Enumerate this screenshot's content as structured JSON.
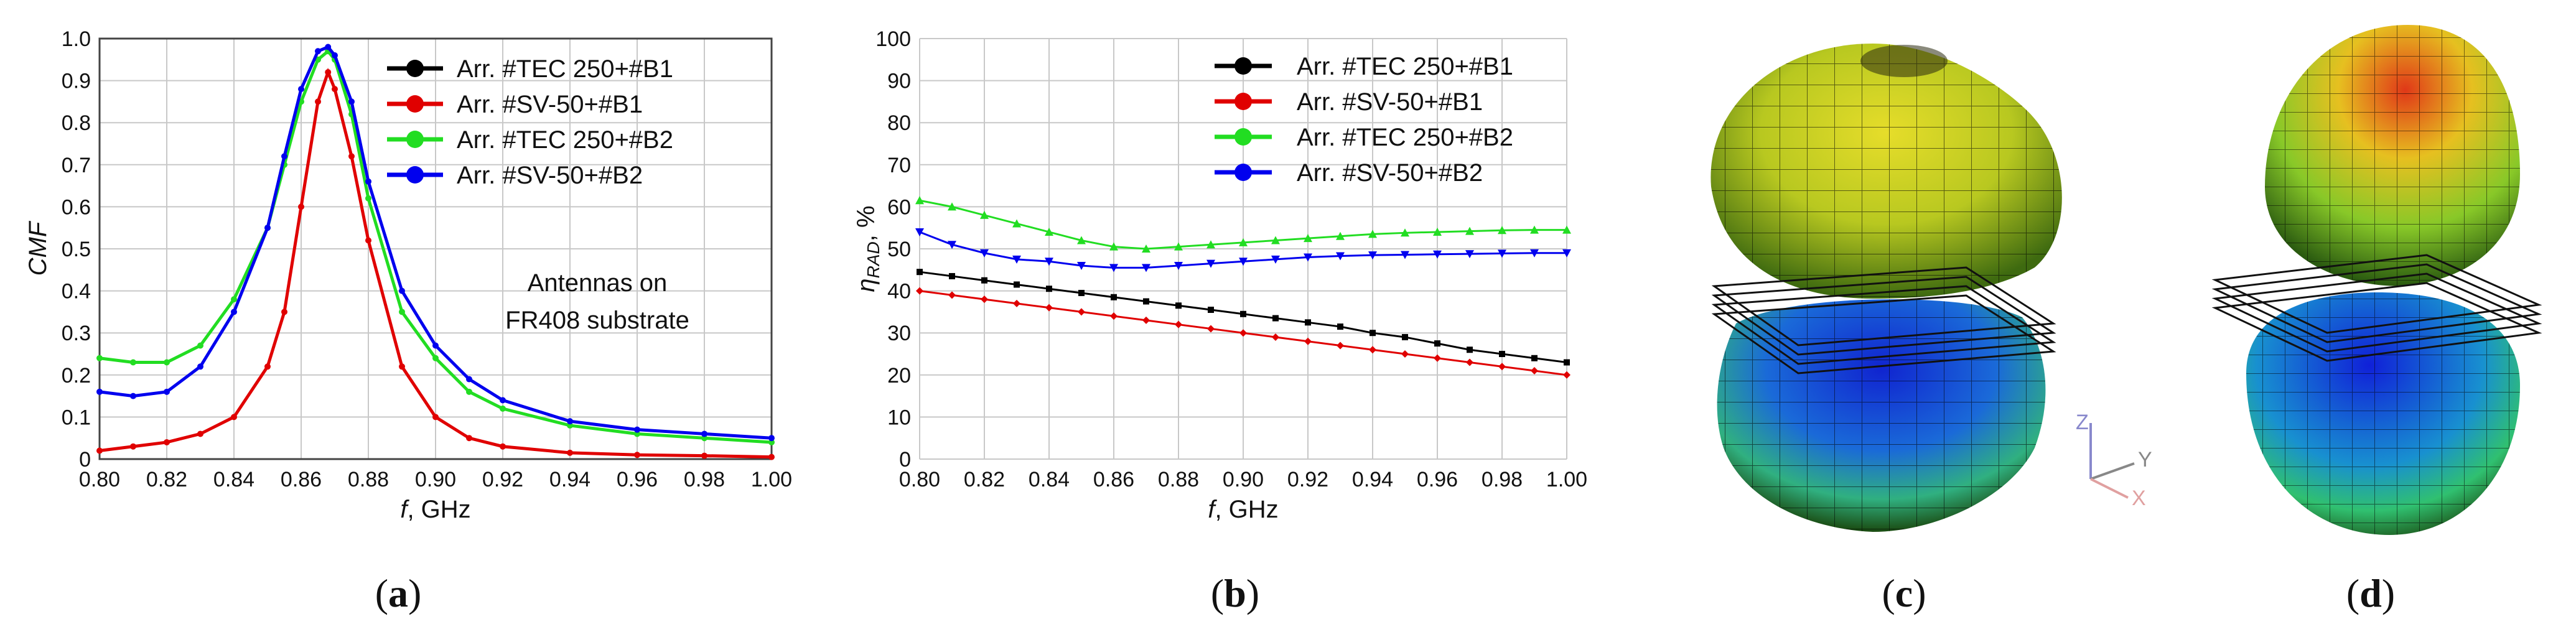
{
  "chart_data": [
    {
      "id": "a",
      "type": "line",
      "panel_label": "a",
      "xlabel_var": "f",
      "xlabel_unit": ", GHz",
      "ylabel": "CMF",
      "xlim": [
        0.8,
        1.0
      ],
      "ylim": [
        0,
        1.0
      ],
      "xticks": [
        "0.80",
        "0.82",
        "0.84",
        "0.86",
        "0.88",
        "0.90",
        "0.92",
        "0.94",
        "0.96",
        "0.98",
        "1.00"
      ],
      "yticks": [
        "0",
        "0.1",
        "0.2",
        "0.3",
        "0.4",
        "0.5",
        "0.6",
        "0.7",
        "0.8",
        "0.9",
        "1.0"
      ],
      "annotation": [
        "Antennas on",
        "FR408 substrate"
      ],
      "x": [
        0.8,
        0.81,
        0.82,
        0.83,
        0.84,
        0.85,
        0.855,
        0.86,
        0.865,
        0.868,
        0.87,
        0.875,
        0.88,
        0.89,
        0.9,
        0.91,
        0.92,
        0.94,
        0.96,
        0.98,
        1.0
      ],
      "series": [
        {
          "name": "Arr. #TEC 250+#B1",
          "color": "#000000",
          "values": [
            null,
            null,
            null,
            null,
            null,
            null,
            null,
            null,
            null,
            null,
            null,
            null,
            null,
            null,
            null,
            null,
            null,
            null,
            null,
            null,
            null
          ]
        },
        {
          "name": "Arr. #SV-50+#B1",
          "color": "#e00000",
          "values": [
            0.02,
            0.03,
            0.04,
            0.06,
            0.1,
            0.22,
            0.35,
            0.6,
            0.85,
            0.92,
            0.88,
            0.72,
            0.52,
            0.22,
            0.1,
            0.05,
            0.03,
            0.015,
            0.01,
            0.008,
            0.005
          ]
        },
        {
          "name": "Arr. #TEC 250+#B2",
          "color": "#22dd22",
          "values": [
            0.24,
            0.23,
            0.23,
            0.27,
            0.38,
            0.55,
            0.7,
            0.85,
            0.95,
            0.97,
            0.95,
            0.82,
            0.62,
            0.35,
            0.24,
            0.16,
            0.12,
            0.08,
            0.06,
            0.05,
            0.04
          ]
        },
        {
          "name": "Arr. #SV-50+#B2",
          "color": "#0000ee",
          "values": [
            0.16,
            0.15,
            0.16,
            0.22,
            0.35,
            0.55,
            0.72,
            0.88,
            0.97,
            0.98,
            0.96,
            0.85,
            0.66,
            0.4,
            0.27,
            0.19,
            0.14,
            0.09,
            0.07,
            0.06,
            0.05
          ]
        }
      ],
      "legend": "top-right"
    },
    {
      "id": "b",
      "type": "line",
      "panel_label": "b",
      "xlabel_var": "f",
      "xlabel_unit": ", GHz",
      "ylabel_main": "η",
      "ylabel_sub": "RAD",
      "ylabel_unit": ", %",
      "xlim": [
        0.8,
        1.0
      ],
      "ylim": [
        0,
        100
      ],
      "xticks": [
        "0.80",
        "0.82",
        "0.84",
        "0.86",
        "0.88",
        "0.90",
        "0.92",
        "0.94",
        "0.96",
        "0.98",
        "1.00"
      ],
      "yticks": [
        "0",
        "10",
        "20",
        "30",
        "40",
        "50",
        "60",
        "70",
        "80",
        "90",
        "100"
      ],
      "x": [
        0.8,
        0.81,
        0.82,
        0.83,
        0.84,
        0.85,
        0.86,
        0.87,
        0.88,
        0.89,
        0.9,
        0.91,
        0.92,
        0.93,
        0.94,
        0.95,
        0.96,
        0.97,
        0.98,
        0.99,
        1.0
      ],
      "series": [
        {
          "name": "Arr. #TEC 250+#B1",
          "color": "#000000",
          "marker": "square",
          "values": [
            44.5,
            43.5,
            42.5,
            41.5,
            40.5,
            39.5,
            38.5,
            37.5,
            36.5,
            35.5,
            34.5,
            33.5,
            32.5,
            31.5,
            30,
            29,
            27.5,
            26,
            25,
            24,
            23
          ]
        },
        {
          "name": "Arr. #SV-50+#B1",
          "color": "#e00000",
          "marker": "diamond",
          "values": [
            40,
            39,
            38,
            37,
            36,
            35,
            34,
            33,
            32,
            31,
            30,
            29,
            28,
            27,
            26,
            25,
            24,
            23,
            22,
            21,
            20
          ]
        },
        {
          "name": "Arr. #TEC 250+#B2",
          "color": "#22dd22",
          "marker": "triangle-up",
          "values": [
            61.5,
            60,
            58,
            56,
            54,
            52,
            50.5,
            50,
            50.5,
            51,
            51.5,
            52,
            52.5,
            53,
            53.5,
            53.8,
            54,
            54.2,
            54.4,
            54.5,
            54.5
          ]
        },
        {
          "name": "Arr. #SV-50+#B2",
          "color": "#0000ee",
          "marker": "triangle-down",
          "values": [
            54,
            51,
            49,
            47.5,
            47,
            46,
            45.5,
            45.5,
            46,
            46.5,
            47,
            47.5,
            48,
            48.3,
            48.5,
            48.6,
            48.7,
            48.8,
            48.9,
            49,
            49
          ]
        }
      ],
      "legend": "top-right"
    }
  ],
  "panels": {
    "c": {
      "label": "c"
    },
    "d": {
      "label": "d"
    }
  },
  "triad": {
    "z": "Z",
    "y": "Y",
    "x": "X"
  },
  "colors": {
    "grid": "#c8c8c8",
    "frame": "#444444",
    "lobe_top": "#d8d020",
    "lobe_bottom": "#1a3ad8"
  }
}
